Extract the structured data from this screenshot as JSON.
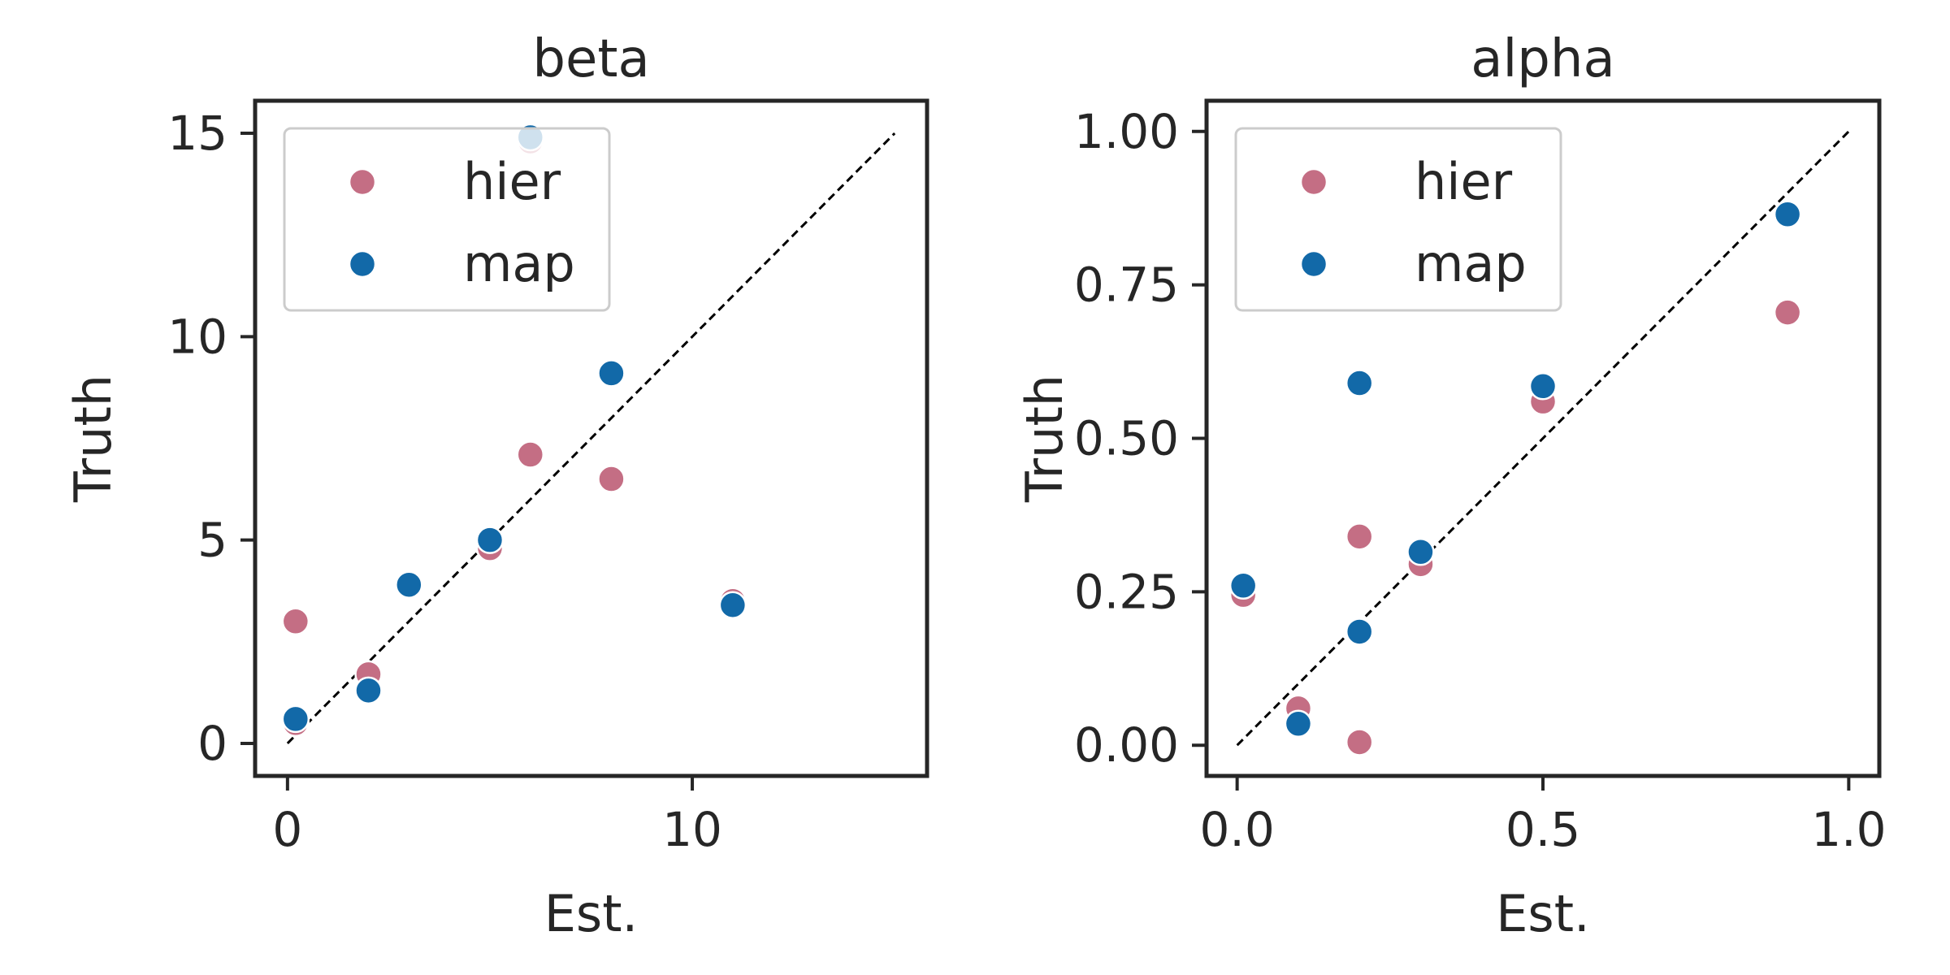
{
  "chart_data": [
    {
      "type": "scatter",
      "title": "beta",
      "xlabel": "Est.",
      "ylabel": "Truth",
      "xlim": [
        -0.8,
        15.8
      ],
      "ylim": [
        -0.8,
        15.8
      ],
      "xticks": [
        0,
        10
      ],
      "xtick_labels": [
        "0",
        "10"
      ],
      "yticks": [
        0,
        5,
        10,
        15
      ],
      "ytick_labels": [
        "0",
        "5",
        "10",
        "15"
      ],
      "identity_line": [
        0,
        15
      ],
      "legend_position": "upper left",
      "grid": false,
      "series": [
        {
          "name": "hier",
          "color": "#c46e84",
          "points": [
            [
              0.2,
              3.0
            ],
            [
              2.0,
              1.7
            ],
            [
              5.0,
              4.8
            ],
            [
              6.0,
              7.1
            ],
            [
              8.0,
              6.5
            ],
            [
              11.0,
              3.5
            ],
            [
              6.0,
              14.8
            ],
            [
              0.2,
              0.5
            ],
            [
              8.0,
              9.1
            ]
          ]
        },
        {
          "name": "map",
          "color": "#1269a8",
          "points": [
            [
              0.2,
              0.6
            ],
            [
              2.0,
              1.3
            ],
            [
              3.0,
              3.9
            ],
            [
              5.0,
              5.0
            ],
            [
              8.0,
              9.1
            ],
            [
              11.0,
              3.4
            ],
            [
              6.0,
              14.9
            ]
          ]
        }
      ]
    },
    {
      "type": "scatter",
      "title": "alpha",
      "xlabel": "Est.",
      "ylabel": "Truth",
      "xlim": [
        -0.05,
        1.05
      ],
      "ylim": [
        -0.05,
        1.05
      ],
      "xticks": [
        0.0,
        0.5,
        1.0
      ],
      "xtick_labels": [
        "0.0",
        "0.5",
        "1.0"
      ],
      "yticks": [
        0.0,
        0.25,
        0.5,
        0.75,
        1.0
      ],
      "ytick_labels": [
        "0.00",
        "0.25",
        "0.50",
        "0.75",
        "1.00"
      ],
      "identity_line": [
        0,
        1
      ],
      "legend_position": "upper left",
      "grid": false,
      "series": [
        {
          "name": "hier",
          "color": "#c46e84",
          "points": [
            [
              0.01,
              0.245
            ],
            [
              0.1,
              0.06
            ],
            [
              0.2,
              0.34
            ],
            [
              0.2,
              0.005
            ],
            [
              0.3,
              0.295
            ],
            [
              0.5,
              0.56
            ],
            [
              0.9,
              0.705
            ]
          ]
        },
        {
          "name": "map",
          "color": "#1269a8",
          "points": [
            [
              0.01,
              0.26
            ],
            [
              0.1,
              0.035
            ],
            [
              0.2,
              0.59
            ],
            [
              0.2,
              0.185
            ],
            [
              0.3,
              0.315
            ],
            [
              0.5,
              0.585
            ],
            [
              0.9,
              0.865
            ]
          ]
        }
      ]
    }
  ]
}
